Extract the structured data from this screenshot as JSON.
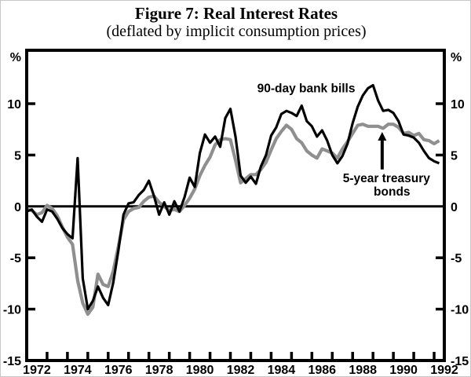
{
  "figure": {
    "title": "Figure 7: Real Interest Rates",
    "subtitle": "(deflated by implicit consumption prices)"
  },
  "chart_data": {
    "type": "line",
    "title": "Figure 7: Real Interest Rates",
    "subtitle": "(deflated by implicit consumption prices)",
    "x_unit": "year, quarterly observations",
    "x_start": 1972.0,
    "x_step": 0.25,
    "xlim": [
      1972.0,
      1992.5
    ],
    "ylim": [
      -15,
      15.2
    ],
    "grid": false,
    "background_color": "#ffffff",
    "frame_color": "#000000",
    "zero_line": true,
    "y_axis": {
      "unit_label": "%",
      "sides": "both",
      "ticks": [
        {
          "v": 10,
          "label": "10"
        },
        {
          "v": 5,
          "label": "5"
        },
        {
          "v": 0,
          "label": "0"
        },
        {
          "v": -5,
          "label": "-5"
        },
        {
          "v": -10,
          "label": "-10"
        },
        {
          "v": -15,
          "label": "-15"
        }
      ],
      "side_tick_values": [
        10,
        5,
        -5,
        -10
      ]
    },
    "x_axis": {
      "tick_years": [
        1973,
        1974,
        1975,
        1976,
        1977,
        1978,
        1979,
        1980,
        1981,
        1982,
        1983,
        1984,
        1985,
        1986,
        1987,
        1988,
        1989,
        1990,
        1991,
        1992
      ],
      "label_years": [
        "1972",
        "1974",
        "1976",
        "1978",
        "1980",
        "1982",
        "1984",
        "1986",
        "1988",
        "1990",
        "1992"
      ]
    },
    "series": [
      {
        "name": "5-year treasury bonds",
        "color": "#8f8f8f",
        "stroke_width": 4.2,
        "values": [
          -0.3,
          -0.4,
          -0.8,
          -0.6,
          0.1,
          -0.2,
          -0.9,
          -2.0,
          -3.0,
          -3.7,
          -7.2,
          -9.4,
          -10.5,
          -9.8,
          -6.6,
          -7.6,
          -7.8,
          -6.3,
          -3.9,
          -1.3,
          -0.5,
          -0.2,
          -0.1,
          0.5,
          0.9,
          1.0,
          0.4,
          0.0,
          -0.4,
          -0.3,
          -0.5,
          0.1,
          0.8,
          1.7,
          3.0,
          4.0,
          4.8,
          6.0,
          6.5,
          6.6,
          6.5,
          4.5,
          2.3,
          2.7,
          3.1,
          3.1,
          3.6,
          4.3,
          5.5,
          6.6,
          7.3,
          7.9,
          7.5,
          6.6,
          6.2,
          5.4,
          5.0,
          4.7,
          5.6,
          5.4,
          5.2,
          4.7,
          5.6,
          6.3,
          7.1,
          7.9,
          8.0,
          7.8,
          7.8,
          7.8,
          7.6,
          8.0,
          8.0,
          7.7,
          7.1,
          7.2,
          6.9,
          7.1,
          6.5,
          6.4,
          6.1,
          6.4
        ]
      },
      {
        "name": "90-day bank bills",
        "color": "#000000",
        "stroke_width": 3.2,
        "values": [
          -0.5,
          -0.3,
          -1.0,
          -1.5,
          -0.3,
          -0.5,
          -1.2,
          -2.1,
          -2.7,
          -3.1,
          4.7,
          -7.0,
          -10.0,
          -9.2,
          -7.8,
          -8.9,
          -9.6,
          -7.4,
          -4.3,
          -0.8,
          0.3,
          0.4,
          1.1,
          1.6,
          2.5,
          1.0,
          -0.8,
          0.4,
          -0.8,
          0.5,
          -0.5,
          0.9,
          2.8,
          1.9,
          5.2,
          7.0,
          6.2,
          6.8,
          5.8,
          8.6,
          9.5,
          6.8,
          3.0,
          2.3,
          2.9,
          2.2,
          3.9,
          5.0,
          6.9,
          7.7,
          9.0,
          9.3,
          9.1,
          8.8,
          9.8,
          8.3,
          7.8,
          6.8,
          7.4,
          6.4,
          5.0,
          4.2,
          4.9,
          6.1,
          8.1,
          9.7,
          10.8,
          11.5,
          11.8,
          10.3,
          9.3,
          9.4,
          9.1,
          8.3,
          7.0,
          6.9,
          6.7,
          6.2,
          5.4,
          4.7,
          4.4,
          4.2
        ]
      }
    ],
    "annotations": [
      {
        "id": "bank-bills-label",
        "text": "90-day bank bills",
        "t": 1985.72,
        "v": 11.1
      },
      {
        "id": "treasury-bonds-label-line1",
        "text": "5-year treasury",
        "t": 1989.66,
        "v": 2.35
      },
      {
        "id": "treasury-bonds-label-line2",
        "text": "bonds",
        "t": 1989.93,
        "v": 1.05
      }
    ],
    "arrow": {
      "t": 1989.45,
      "v_base": 3.6,
      "v_tip": 7.25,
      "points_to": "5-year treasury bonds line"
    }
  }
}
